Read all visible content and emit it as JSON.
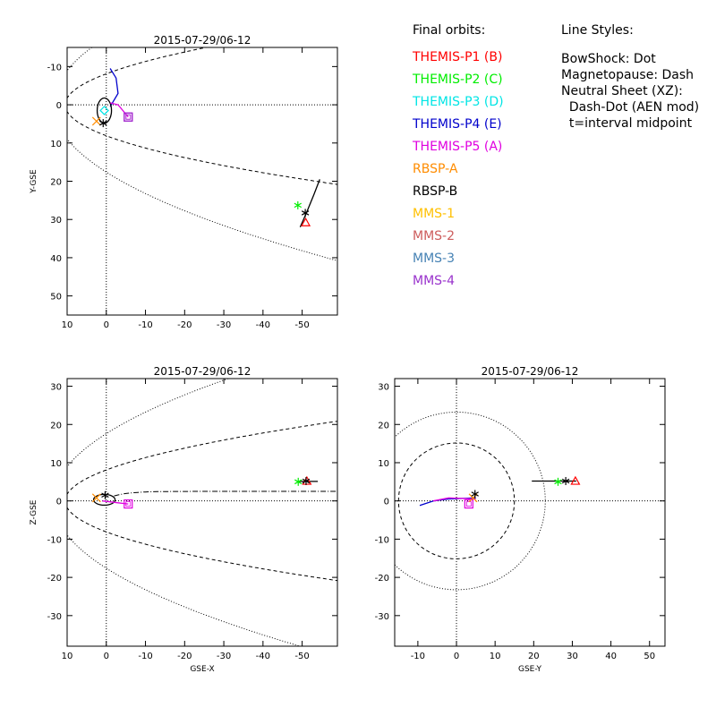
{
  "legend": {
    "title": "Final orbits:",
    "items": [
      {
        "label": "THEMIS-P1 (B)",
        "color": "#ff0000"
      },
      {
        "label": "THEMIS-P2 (C)",
        "color": "#00ee00"
      },
      {
        "label": "THEMIS-P3 (D)",
        "color": "#00e5e5"
      },
      {
        "label": "THEMIS-P4 (E)",
        "color": "#0000cc"
      },
      {
        "label": "THEMIS-P5 (A)",
        "color": "#e000e0"
      },
      {
        "label": "RBSP-A",
        "color": "#ff8c00"
      },
      {
        "label": "RBSP-B",
        "color": "#000000"
      },
      {
        "label": "MMS-1",
        "color": "#ffc000"
      },
      {
        "label": "MMS-2",
        "color": "#cd5c5c"
      },
      {
        "label": "MMS-3",
        "color": "#4682b4"
      },
      {
        "label": "MMS-4",
        "color": "#9932cc"
      }
    ]
  },
  "line_styles": {
    "title": "Line Styles:",
    "lines": [
      "BowShock: Dot",
      "Magnetopause: Dash",
      "Neutral Sheet (XZ):",
      "  Dash-Dot (AEN mod)",
      "  t=interval midpoint"
    ]
  },
  "chart_data": [
    {
      "type": "scatter",
      "title": "2015-07-29/06-12",
      "xlabel": "",
      "ylabel": "Y-GSE",
      "xlim": [
        10,
        -59
      ],
      "ylim": [
        -15,
        55
      ],
      "xticks": [
        10,
        0,
        -10,
        -20,
        -30,
        -40,
        -50
      ],
      "yticks": [
        -10,
        0,
        10,
        20,
        30,
        40,
        50
      ],
      "series": [
        {
          "name": "THEMIS-P1 (B)",
          "marker": "triangle",
          "points": [
            [
              -50.9,
              30.8
            ]
          ]
        },
        {
          "name": "THEMIS-P2 (C)",
          "marker": "asterisk",
          "points": [
            [
              -48.9,
              26.3
            ]
          ]
        },
        {
          "name": "THEMIS-P3 (D)",
          "marker": "diamond",
          "points": [
            [
              0.5,
              1.5
            ]
          ]
        },
        {
          "name": "THEMIS-P4 (E)",
          "marker": "none",
          "points": [
            [
              -1,
              -9.5
            ],
            [
              -2.5,
              -7
            ],
            [
              -3,
              -3
            ],
            [
              -1,
              0.5
            ]
          ]
        },
        {
          "name": "THEMIS-P5 (A)",
          "marker": "square",
          "points": [
            [
              -5.6,
              3.2
            ]
          ]
        },
        {
          "name": "RBSP-A",
          "marker": "x",
          "points": [
            [
              2.5,
              4.3
            ]
          ]
        },
        {
          "name": "RBSP-B",
          "marker": "asterisk",
          "points": [
            [
              0.8,
              4.8
            ],
            [
              -50.8,
              28.3
            ]
          ]
        },
        {
          "name": "MMS-4",
          "marker": "square",
          "points": [
            [
              -5.6,
              3.2
            ]
          ]
        }
      ]
    },
    {
      "type": "scatter",
      "title": "2015-07-29/06-12",
      "xlabel": "GSE-X",
      "ylabel": "Z-GSE",
      "xlim": [
        10,
        -59
      ],
      "ylim": [
        -38,
        32
      ],
      "xticks": [
        10,
        0,
        -10,
        -20,
        -30,
        -40,
        -50
      ],
      "yticks": [
        -30,
        -20,
        -10,
        0,
        10,
        20,
        30
      ],
      "series": [
        {
          "name": "THEMIS-P1 (B)",
          "marker": "triangle",
          "points": [
            [
              -51.2,
              5.2
            ]
          ]
        },
        {
          "name": "THEMIS-P2 (C)",
          "marker": "asterisk",
          "points": [
            [
              -49,
              5
            ]
          ]
        },
        {
          "name": "THEMIS-P5 (A)",
          "marker": "square",
          "points": [
            [
              -5.6,
              -0.8
            ]
          ]
        },
        {
          "name": "RBSP-A",
          "marker": "x",
          "points": [
            [
              2.5,
              0.8
            ]
          ]
        },
        {
          "name": "RBSP-B",
          "marker": "asterisk",
          "points": [
            [
              0.3,
              1.5
            ],
            [
              -51,
              5.2
            ]
          ]
        }
      ]
    },
    {
      "type": "scatter",
      "title": "2015-07-29/06-12",
      "xlabel": "GSE-Y",
      "ylabel": "",
      "xlim": [
        -16,
        54
      ],
      "ylim": [
        -38,
        32
      ],
      "xticks": [
        -10,
        0,
        10,
        20,
        30,
        40,
        50
      ],
      "yticks": [
        -30,
        -20,
        -10,
        0,
        10,
        20,
        30
      ],
      "series": [
        {
          "name": "THEMIS-P1 (B)",
          "marker": "triangle",
          "points": [
            [
              30.8,
              5.2
            ]
          ]
        },
        {
          "name": "THEMIS-P2 (C)",
          "marker": "asterisk",
          "points": [
            [
              26.3,
              5
            ]
          ]
        },
        {
          "name": "THEMIS-P5 (A)",
          "marker": "square",
          "points": [
            [
              3.2,
              -0.8
            ]
          ]
        },
        {
          "name": "RBSP-A",
          "marker": "x",
          "points": [
            [
              4.3,
              0.8
            ]
          ]
        },
        {
          "name": "RBSP-B",
          "marker": "asterisk",
          "points": [
            [
              4.8,
              1.8
            ],
            [
              28.3,
              5.2
            ]
          ]
        }
      ]
    }
  ]
}
